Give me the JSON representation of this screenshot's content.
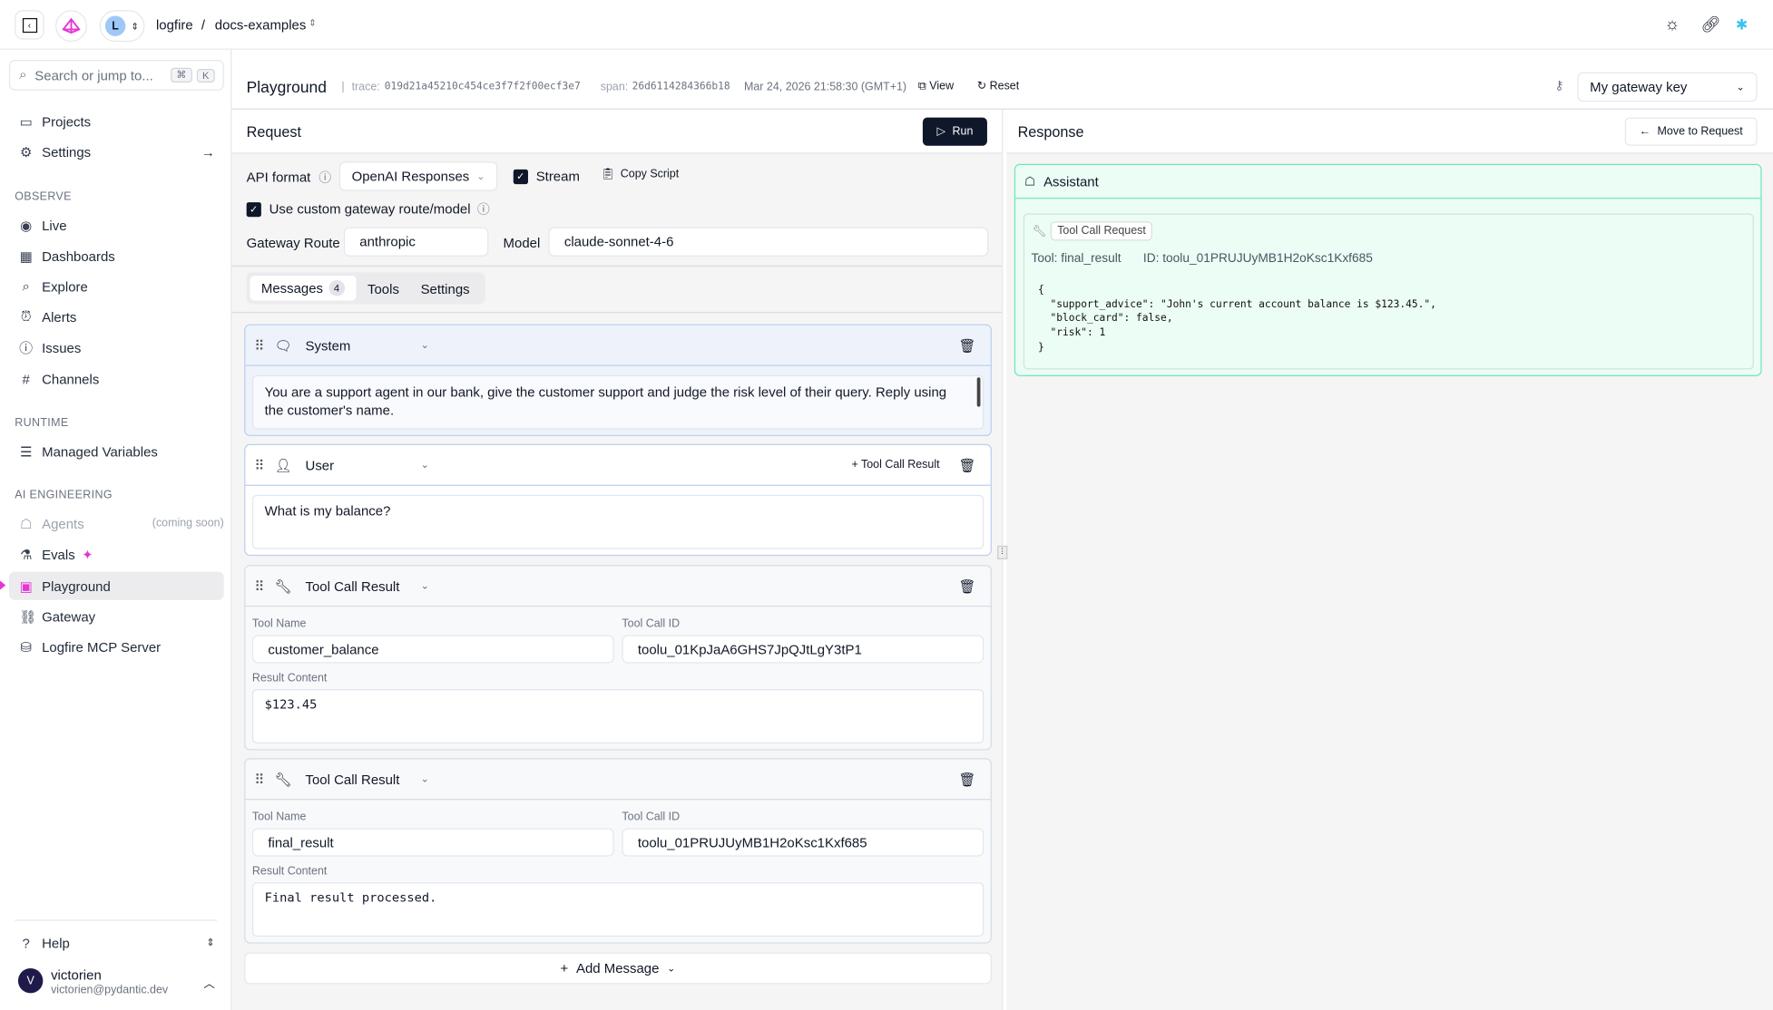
{
  "topbar": {
    "org": "logfire",
    "separator": "/",
    "project": "docs-examples",
    "avatar_letter": "L"
  },
  "sidebar": {
    "search_placeholder": "Search or jump to...",
    "shortcut_keys": [
      "⌘",
      "K"
    ],
    "top_items": [
      {
        "label": "Projects",
        "icon": "folder-icon"
      },
      {
        "label": "Settings",
        "icon": "gear-icon"
      }
    ],
    "sections": [
      {
        "title": "OBSERVE",
        "items": [
          {
            "label": "Live"
          },
          {
            "label": "Dashboards"
          },
          {
            "label": "Explore"
          },
          {
            "label": "Alerts"
          },
          {
            "label": "Issues"
          },
          {
            "label": "Channels"
          }
        ]
      },
      {
        "title": "RUNTIME",
        "items": [
          {
            "label": "Managed Variables"
          }
        ]
      },
      {
        "title": "AI ENGINEERING",
        "items": [
          {
            "label": "Agents",
            "note": "(coming soon)"
          },
          {
            "label": "Evals"
          },
          {
            "label": "Playground"
          },
          {
            "label": "Gateway"
          },
          {
            "label": "Logfire MCP Server"
          }
        ]
      }
    ],
    "help": "Help",
    "user": {
      "name": "victorien",
      "email": "victorien@pydantic.dev",
      "initial": "V"
    }
  },
  "header": {
    "title": "Playground",
    "trace_label": "trace:",
    "trace": "019d21a45210c454ce3f7f2f00ecf3e7",
    "span_label": "span:",
    "span": "26d6114284366b18",
    "timestamp": "Mar 24, 2026 21:58:30 (GMT+1)",
    "view": "View",
    "reset": "Reset",
    "gateway_key": "My gateway key"
  },
  "request": {
    "title": "Request",
    "run": "Run",
    "api_format_label": "API format",
    "api_format": "OpenAI Responses",
    "stream": "Stream",
    "stream_checked": true,
    "copy_script": "Copy Script",
    "custom_route_label": "Use custom gateway route/model",
    "custom_route_checked": true,
    "gateway_route_label": "Gateway Route",
    "gateway_route": "anthropic",
    "model_label": "Model",
    "model": "claude-sonnet-4-6",
    "tabs": [
      {
        "label": "Messages",
        "count": "4"
      },
      {
        "label": "Tools"
      },
      {
        "label": "Settings"
      }
    ],
    "messages": [
      {
        "role": "System",
        "content": "You are a support agent in our bank, give the customer support and judge the risk level of their query. Reply using the customer's name."
      },
      {
        "role": "User",
        "content": "What is my balance?",
        "action": "+ Tool Call Result"
      },
      {
        "role": "Tool Call Result",
        "tool_name_label": "Tool Name",
        "tool_name": "customer_balance",
        "tool_call_id_label": "Tool Call ID",
        "tool_call_id": "toolu_01KpJaA6GHS7JpQJtLgY3tP1",
        "result_label": "Result Content",
        "result": "$123.45"
      },
      {
        "role": "Tool Call Result",
        "tool_name_label": "Tool Name",
        "tool_name": "final_result",
        "tool_call_id_label": "Tool Call ID",
        "tool_call_id": "toolu_01PRUJUyMB1H2oKsc1Kxf685",
        "result_label": "Result Content",
        "result": "Final result processed."
      }
    ],
    "add_message": "Add Message"
  },
  "response": {
    "title": "Response",
    "move": "Move to Request",
    "role": "Assistant",
    "badge": "Tool Call Request",
    "tool": "Tool: final_result",
    "id": "ID: toolu_01PRUJUyMB1H2oKsc1Kxf685",
    "json": "{\n  \"support_advice\": \"John's current account balance is $123.45.\",\n  \"block_card\": false,\n  \"risk\": 1\n}"
  },
  "colors": {
    "accent_dark": "#0f172a",
    "assistant_bg": "#ecfdf5",
    "assistant_border": "#6ee7b7",
    "brand_pink": "#e535d6"
  }
}
